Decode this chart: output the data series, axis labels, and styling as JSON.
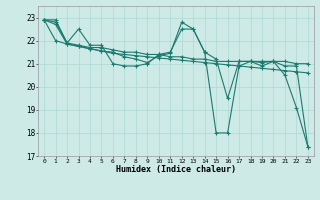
{
  "xlabel": "Humidex (Indice chaleur)",
  "ylabel": "",
  "background_color": "#ceeae6",
  "grid_color": "#aed8d2",
  "line_color": "#1a7a6e",
  "xlim": [
    -0.5,
    23.5
  ],
  "ylim": [
    17,
    23.5
  ],
  "yticks": [
    17,
    18,
    19,
    20,
    21,
    22,
    23
  ],
  "xticks": [
    0,
    1,
    2,
    3,
    4,
    5,
    6,
    7,
    8,
    9,
    10,
    11,
    12,
    13,
    14,
    15,
    16,
    17,
    18,
    19,
    20,
    21,
    22,
    23
  ],
  "series": [
    [
      22.9,
      22.9,
      21.9,
      22.5,
      21.8,
      21.8,
      21.0,
      20.9,
      20.9,
      21.0,
      21.4,
      21.5,
      22.5,
      22.5,
      21.5,
      21.2,
      19.5,
      21.1,
      21.1,
      20.9,
      21.1,
      20.5,
      19.1,
      17.4
    ],
    [
      22.9,
      22.8,
      21.9,
      21.8,
      21.7,
      21.7,
      21.6,
      21.5,
      21.5,
      21.4,
      21.4,
      21.3,
      21.3,
      21.2,
      21.2,
      21.1,
      21.1,
      21.1,
      21.1,
      21.1,
      21.1,
      21.1,
      21.0,
      21.0
    ],
    [
      22.9,
      22.7,
      21.85,
      21.75,
      21.65,
      21.55,
      21.45,
      21.4,
      21.35,
      21.3,
      21.25,
      21.2,
      21.15,
      21.1,
      21.05,
      21.0,
      20.95,
      20.9,
      20.85,
      20.8,
      20.75,
      20.7,
      20.65,
      20.6
    ],
    [
      22.9,
      22.0,
      21.85,
      21.75,
      21.65,
      21.55,
      21.5,
      21.3,
      21.2,
      21.05,
      21.35,
      21.45,
      22.8,
      22.5,
      21.5,
      18.0,
      18.0,
      20.9,
      21.1,
      21.05,
      21.1,
      20.9,
      20.9,
      17.4
    ]
  ]
}
